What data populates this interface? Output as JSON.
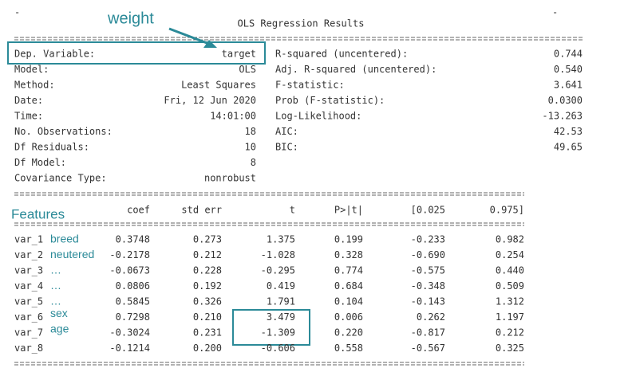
{
  "header": {
    "left_mark": "-",
    "title": "OLS Regression Results",
    "right_mark": "-"
  },
  "summary_left": [
    [
      "Dep. Variable:",
      "target"
    ],
    [
      "Model:",
      "OLS"
    ],
    [
      "Method:",
      "Least Squares"
    ],
    [
      "Date:",
      "Fri, 12 Jun 2020"
    ],
    [
      "Time:",
      "14:01:00"
    ],
    [
      "No. Observations:",
      "18"
    ],
    [
      "Df Residuals:",
      "10"
    ],
    [
      "Df Model:",
      "8"
    ],
    [
      "Covariance Type:",
      "nonrobust"
    ]
  ],
  "summary_right": [
    [
      "R-squared (uncentered):",
      "0.744"
    ],
    [
      "Adj. R-squared (uncentered):",
      "0.540"
    ],
    [
      "F-statistic:",
      "3.641"
    ],
    [
      "Prob (F-statistic):",
      "0.0300"
    ],
    [
      "Log-Likelihood:",
      "-13.263"
    ],
    [
      "AIC:",
      "42.53"
    ],
    [
      "BIC:",
      "49.65"
    ]
  ],
  "table": {
    "columns": [
      "coef",
      "std err",
      "t",
      "P>|t|",
      "[0.025",
      "0.975]"
    ],
    "rows": [
      [
        "var_1",
        "0.3748",
        "0.273",
        "1.375",
        "0.199",
        "-0.233",
        "0.982"
      ],
      [
        "var_2",
        "-0.2178",
        "0.212",
        "-1.028",
        "0.328",
        "-0.690",
        "0.254"
      ],
      [
        "var_3",
        "-0.0673",
        "0.228",
        "-0.295",
        "0.774",
        "-0.575",
        "0.440"
      ],
      [
        "var_4",
        "0.0806",
        "0.192",
        "0.419",
        "0.684",
        "-0.348",
        "0.509"
      ],
      [
        "var_5",
        "0.5845",
        "0.326",
        "1.791",
        "0.104",
        "-0.143",
        "1.312"
      ],
      [
        "var_6",
        "0.7298",
        "0.210",
        "3.479",
        "0.006",
        "0.262",
        "1.197"
      ],
      [
        "var_7",
        "-0.3024",
        "0.231",
        "-1.309",
        "0.220",
        "-0.817",
        "0.212"
      ],
      [
        "var_8",
        "-0.1214",
        "0.200",
        "-0.606",
        "0.558",
        "-0.567",
        "0.325"
      ]
    ]
  },
  "annotations": {
    "weight": "weight",
    "features": "Features",
    "row_labels": [
      "breed",
      "neutered",
      "…",
      "…",
      "…",
      "sex",
      "age"
    ]
  }
}
